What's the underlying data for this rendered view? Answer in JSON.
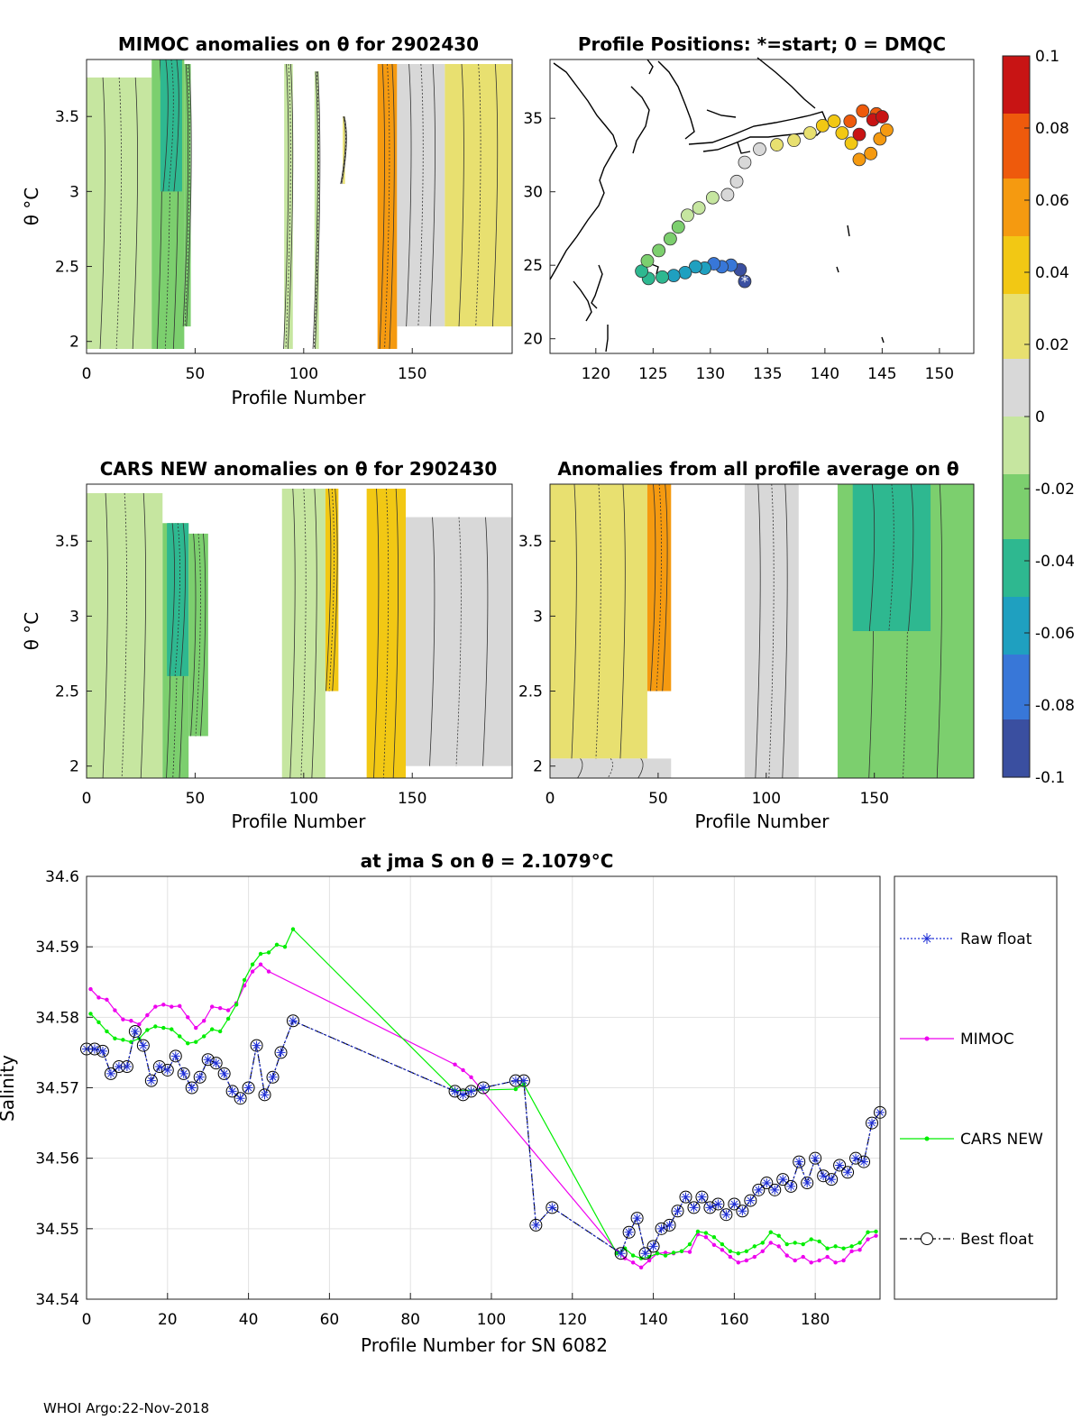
{
  "footer": "WHOI Argo:22-Nov-2018",
  "colors": {
    "raw": "#1f2fd6",
    "mimoc": "#ee00ee",
    "cars": "#00ee00",
    "best": "#000000",
    "colormap": [
      "#3a4fa0",
      "#3877d8",
      "#1fa0c0",
      "#2eb890",
      "#7ccf6e",
      "#c6e6a0",
      "#d8d8d8",
      "#e8e070",
      "#f2c814",
      "#f59a10",
      "#ee5a0c",
      "#c81414"
    ]
  },
  "chart_data": [
    {
      "id": "mimoc",
      "type": "heatmap",
      "title": "MIMOC anomalies on θ  for 2902430",
      "xlabel": "Profile Number",
      "ylabel": "θ °C",
      "xlim": [
        0,
        196
      ],
      "ylim": [
        1.92,
        3.88
      ],
      "xticks": [
        0,
        50,
        100,
        150
      ],
      "yticks": [
        2,
        2.5,
        3,
        3.5
      ],
      "strips": [
        {
          "x0": 0,
          "x1": 30,
          "top": 3.76,
          "bot": 1.95,
          "value": -0.005
        },
        {
          "x0": 30,
          "x1": 45,
          "top": 3.88,
          "bot": 1.95,
          "value": -0.02
        },
        {
          "x0": 34,
          "x1": 44,
          "top": 3.88,
          "bot": 3.0,
          "value": -0.04
        },
        {
          "x0": 45,
          "x1": 48,
          "top": 3.85,
          "bot": 2.1,
          "value": -0.025
        },
        {
          "x0": 91,
          "x1": 95,
          "top": 3.85,
          "bot": 1.95,
          "value": -0.01
        },
        {
          "x0": 105,
          "x1": 107,
          "top": 3.8,
          "bot": 1.95,
          "value": -0.005
        },
        {
          "x0": 118,
          "x1": 119,
          "top": 3.5,
          "bot": 3.05,
          "value": 0.03
        },
        {
          "x0": 134,
          "x1": 143,
          "top": 3.85,
          "bot": 1.95,
          "value": 0.05
        },
        {
          "x0": 143,
          "x1": 165,
          "top": 3.85,
          "bot": 2.1,
          "value": 0.015
        },
        {
          "x0": 165,
          "x1": 196,
          "top": 3.85,
          "bot": 2.1,
          "value": 0.03
        }
      ]
    },
    {
      "id": "map",
      "type": "scatter",
      "title": "Profile Positions: *=start; 0 = DMQC",
      "xlim": [
        116,
        153
      ],
      "ylim": [
        19,
        39
      ],
      "xticks": [
        120,
        125,
        130,
        135,
        140,
        145,
        150
      ],
      "yticks": [
        20,
        25,
        30,
        35
      ],
      "track": [
        [
          133.0,
          23.9
        ],
        [
          132.6,
          24.7
        ],
        [
          131.8,
          25.0
        ],
        [
          131.0,
          24.9
        ],
        [
          130.3,
          25.1
        ],
        [
          129.5,
          24.8
        ],
        [
          128.7,
          24.9
        ],
        [
          127.8,
          24.5
        ],
        [
          126.8,
          24.3
        ],
        [
          125.8,
          24.2
        ],
        [
          124.6,
          24.1
        ],
        [
          124.0,
          24.6
        ],
        [
          124.5,
          25.3
        ],
        [
          125.5,
          26.0
        ],
        [
          126.5,
          26.8
        ],
        [
          127.2,
          27.6
        ],
        [
          128.0,
          28.4
        ],
        [
          129.0,
          28.9
        ],
        [
          130.2,
          29.6
        ],
        [
          131.5,
          29.8
        ],
        [
          132.3,
          30.7
        ],
        [
          133.0,
          32.0
        ],
        [
          134.3,
          32.9
        ],
        [
          135.8,
          33.2
        ],
        [
          137.3,
          33.5
        ],
        [
          138.7,
          34.0
        ],
        [
          139.8,
          34.5
        ],
        [
          140.8,
          34.8
        ],
        [
          141.5,
          34.0
        ],
        [
          142.3,
          33.3
        ],
        [
          143.0,
          32.2
        ],
        [
          144.0,
          32.6
        ],
        [
          144.8,
          33.6
        ],
        [
          145.4,
          34.2
        ],
        [
          144.5,
          35.3
        ],
        [
          143.3,
          35.5
        ],
        [
          142.2,
          34.8
        ],
        [
          143.0,
          33.9
        ],
        [
          144.2,
          34.9
        ],
        [
          145.0,
          35.1
        ]
      ],
      "cbar": {
        "min": -0.1,
        "max": 0.1,
        "ticks": [
          "0.1",
          "0.08",
          "0.06",
          "0.04",
          "0.02",
          "0",
          "-0.02",
          "-0.04",
          "-0.06",
          "-0.08",
          "-0.1"
        ]
      }
    },
    {
      "id": "cars",
      "type": "heatmap",
      "title": "CARS NEW anomalies on θ for 2902430",
      "xlabel": "Profile Number",
      "ylabel": "θ °C",
      "xlim": [
        0,
        196
      ],
      "ylim": [
        1.92,
        3.88
      ],
      "xticks": [
        0,
        50,
        100,
        150
      ],
      "yticks": [
        2,
        2.5,
        3,
        3.5
      ],
      "strips": [
        {
          "x0": 0,
          "x1": 35,
          "top": 3.82,
          "bot": 1.92,
          "value": -0.005
        },
        {
          "x0": 35,
          "x1": 47,
          "top": 3.62,
          "bot": 1.92,
          "value": -0.025
        },
        {
          "x0": 37,
          "x1": 47,
          "top": 3.62,
          "bot": 2.6,
          "value": -0.045
        },
        {
          "x0": 47,
          "x1": 56,
          "top": 3.55,
          "bot": 2.2,
          "value": -0.02
        },
        {
          "x0": 90,
          "x1": 110,
          "top": 3.85,
          "bot": 1.92,
          "value": -0.01
        },
        {
          "x0": 110,
          "x1": 116,
          "top": 3.85,
          "bot": 2.5,
          "value": 0.035
        },
        {
          "x0": 129,
          "x1": 147,
          "top": 3.85,
          "bot": 1.92,
          "value": 0.04
        },
        {
          "x0": 147,
          "x1": 196,
          "top": 3.66,
          "bot": 2.0,
          "value": 0.005
        }
      ]
    },
    {
      "id": "anom",
      "type": "heatmap",
      "title": "Anomalies from all profile average on θ",
      "xlabel": "Profile Number",
      "xlim": [
        0,
        196
      ],
      "ylim": [
        1.92,
        3.88
      ],
      "xticks": [
        0,
        50,
        100,
        150
      ],
      "yticks": [
        2,
        2.5,
        3,
        3.5
      ],
      "strips": [
        {
          "x0": 0,
          "x1": 45,
          "top": 3.88,
          "bot": 2.05,
          "value": 0.025
        },
        {
          "x0": 45,
          "x1": 56,
          "top": 3.88,
          "bot": 2.5,
          "value": 0.055
        },
        {
          "x0": 0,
          "x1": 56,
          "top": 2.05,
          "bot": 1.92,
          "value": 0.0
        },
        {
          "x0": 90,
          "x1": 115,
          "top": 3.88,
          "bot": 1.92,
          "value": 0.005
        },
        {
          "x0": 133,
          "x1": 196,
          "top": 3.88,
          "bot": 1.92,
          "value": -0.02
        },
        {
          "x0": 140,
          "x1": 176,
          "top": 3.88,
          "bot": 2.9,
          "value": -0.04
        }
      ]
    },
    {
      "id": "salinity",
      "type": "line",
      "title": "at jma S on θ = 2.1079°C",
      "xlabel": "Profile Number for SN 6082",
      "ylabel": "Salinity",
      "xlim": [
        0,
        196
      ],
      "ylim": [
        34.54,
        34.6
      ],
      "xticks": [
        0,
        20,
        40,
        60,
        80,
        100,
        120,
        140,
        160,
        180
      ],
      "yticks": [
        34.54,
        34.55,
        34.56,
        34.57,
        34.58,
        34.59,
        34.6
      ],
      "series": [
        {
          "name": "Raw float",
          "x": [
            0,
            2,
            4,
            6,
            8,
            10,
            12,
            14,
            16,
            18,
            20,
            22,
            24,
            26,
            28,
            30,
            32,
            34,
            36,
            38,
            40,
            42,
            44,
            46,
            48,
            51,
            91,
            93,
            95,
            98,
            106,
            108,
            111,
            115,
            132,
            134,
            136,
            138,
            140,
            142,
            144,
            146,
            148,
            150,
            152,
            154,
            156,
            158,
            160,
            162,
            164,
            166,
            168,
            170,
            172,
            174,
            176,
            178,
            180,
            182,
            184,
            186,
            188,
            190,
            192,
            194,
            196
          ],
          "y": [
            34.5755,
            34.5755,
            34.5752,
            34.572,
            34.573,
            34.573,
            34.578,
            34.576,
            34.571,
            34.573,
            34.5725,
            34.5745,
            34.572,
            34.57,
            34.5715,
            34.574,
            34.5735,
            34.572,
            34.5695,
            34.5685,
            34.57,
            34.576,
            34.569,
            34.5715,
            34.575,
            34.5795,
            34.5695,
            34.569,
            34.5695,
            34.57,
            34.571,
            34.571,
            34.5505,
            34.553,
            34.5465,
            34.5495,
            34.5515,
            34.5465,
            34.5475,
            34.55,
            34.5505,
            34.5525,
            34.5545,
            34.553,
            34.5545,
            34.553,
            34.5535,
            34.552,
            34.5535,
            34.5525,
            34.554,
            34.5555,
            34.5565,
            34.5555,
            34.557,
            34.556,
            34.5595,
            34.5565,
            34.56,
            34.5575,
            34.557,
            34.559,
            34.558,
            34.56,
            34.5595,
            34.565,
            34.5665
          ]
        },
        {
          "name": "MIMOC",
          "x": [
            1,
            3,
            5,
            7,
            9,
            11,
            13,
            15,
            17,
            19,
            21,
            23,
            25,
            27,
            29,
            31,
            33,
            35,
            37,
            39,
            41,
            43,
            45,
            91,
            93,
            95,
            131,
            133,
            135,
            137,
            139,
            141,
            143,
            145,
            147,
            149,
            151,
            153,
            155,
            157,
            159,
            161,
            163,
            165,
            167,
            169,
            171,
            173,
            175,
            177,
            179,
            181,
            183,
            185,
            187,
            189,
            191,
            193,
            195
          ],
          "y": [
            34.584,
            34.5828,
            34.5825,
            34.581,
            34.5797,
            34.5795,
            34.579,
            34.5803,
            34.5815,
            34.5818,
            34.5815,
            34.5816,
            34.58,
            34.5785,
            34.5795,
            34.5815,
            34.5813,
            34.581,
            34.582,
            34.5845,
            34.5865,
            34.5875,
            34.5865,
            34.5733,
            34.5725,
            34.5715,
            34.5468,
            34.5458,
            34.5452,
            34.5445,
            34.5455,
            34.5465,
            34.5466,
            34.5465,
            34.5468,
            34.5467,
            34.5492,
            34.5488,
            34.5477,
            34.547,
            34.546,
            34.5452,
            34.5455,
            34.546,
            34.5468,
            34.548,
            34.5475,
            34.5462,
            34.5455,
            34.546,
            34.5452,
            34.5455,
            34.546,
            34.5452,
            34.5455,
            34.5468,
            34.547,
            34.5485,
            34.549
          ]
        },
        {
          "name": "CARS NEW",
          "x": [
            1,
            3,
            5,
            7,
            9,
            11,
            13,
            15,
            17,
            19,
            21,
            23,
            25,
            27,
            29,
            31,
            33,
            35,
            37,
            39,
            41,
            43,
            45,
            47,
            49,
            51,
            91,
            106,
            108,
            131,
            133,
            135,
            137,
            139,
            141,
            143,
            145,
            147,
            149,
            151,
            153,
            155,
            157,
            159,
            161,
            163,
            165,
            167,
            169,
            171,
            173,
            175,
            177,
            179,
            181,
            183,
            185,
            187,
            189,
            191,
            193,
            195
          ],
          "y": [
            34.5805,
            34.5793,
            34.578,
            34.577,
            34.5768,
            34.5765,
            34.577,
            34.5782,
            34.5787,
            34.5785,
            34.5783,
            34.5773,
            34.5763,
            34.5765,
            34.5773,
            34.5783,
            34.578,
            34.5798,
            34.5818,
            34.5853,
            34.5875,
            34.589,
            34.5892,
            34.5903,
            34.59,
            34.5925,
            34.5696,
            34.5698,
            34.5705,
            34.5465,
            34.5472,
            34.5462,
            34.5458,
            34.546,
            34.5465,
            34.5462,
            34.5466,
            34.5468,
            34.5478,
            34.5496,
            34.5494,
            34.5488,
            34.5478,
            34.5468,
            34.5465,
            34.5468,
            34.5475,
            34.548,
            34.5495,
            34.549,
            34.5478,
            34.548,
            34.5478,
            34.5485,
            34.5482,
            34.5472,
            34.5475,
            34.5472,
            34.5475,
            34.548,
            34.5495,
            34.5496
          ]
        },
        {
          "name": "Best float",
          "x": [
            0,
            2,
            4,
            6,
            8,
            10,
            12,
            14,
            16,
            18,
            20,
            22,
            24,
            26,
            28,
            30,
            32,
            34,
            36,
            38,
            40,
            42,
            44,
            46,
            48,
            51,
            91,
            93,
            95,
            98,
            106,
            108,
            111,
            115,
            132,
            134,
            136,
            138,
            140,
            142,
            144,
            146,
            148,
            150,
            152,
            154,
            156,
            158,
            160,
            162,
            164,
            166,
            168,
            170,
            172,
            174,
            176,
            178,
            180,
            182,
            184,
            186,
            188,
            190,
            192,
            194,
            196
          ],
          "y": [
            34.5755,
            34.5755,
            34.5752,
            34.572,
            34.573,
            34.573,
            34.578,
            34.576,
            34.571,
            34.573,
            34.5725,
            34.5745,
            34.572,
            34.57,
            34.5715,
            34.574,
            34.5735,
            34.572,
            34.5695,
            34.5685,
            34.57,
            34.576,
            34.569,
            34.5715,
            34.575,
            34.5795,
            34.5695,
            34.569,
            34.5695,
            34.57,
            34.571,
            34.571,
            34.5505,
            34.553,
            34.5465,
            34.5495,
            34.5515,
            34.5465,
            34.5475,
            34.55,
            34.5505,
            34.5525,
            34.5545,
            34.553,
            34.5545,
            34.553,
            34.5535,
            34.552,
            34.5535,
            34.5525,
            34.554,
            34.5555,
            34.5565,
            34.5555,
            34.557,
            34.556,
            34.5595,
            34.5565,
            34.56,
            34.5575,
            34.557,
            34.559,
            34.558,
            34.56,
            34.5595,
            34.565,
            34.5665
          ]
        }
      ],
      "legend": [
        "Raw float",
        "MIMOC",
        "CARS NEW",
        "Best float"
      ]
    }
  ]
}
